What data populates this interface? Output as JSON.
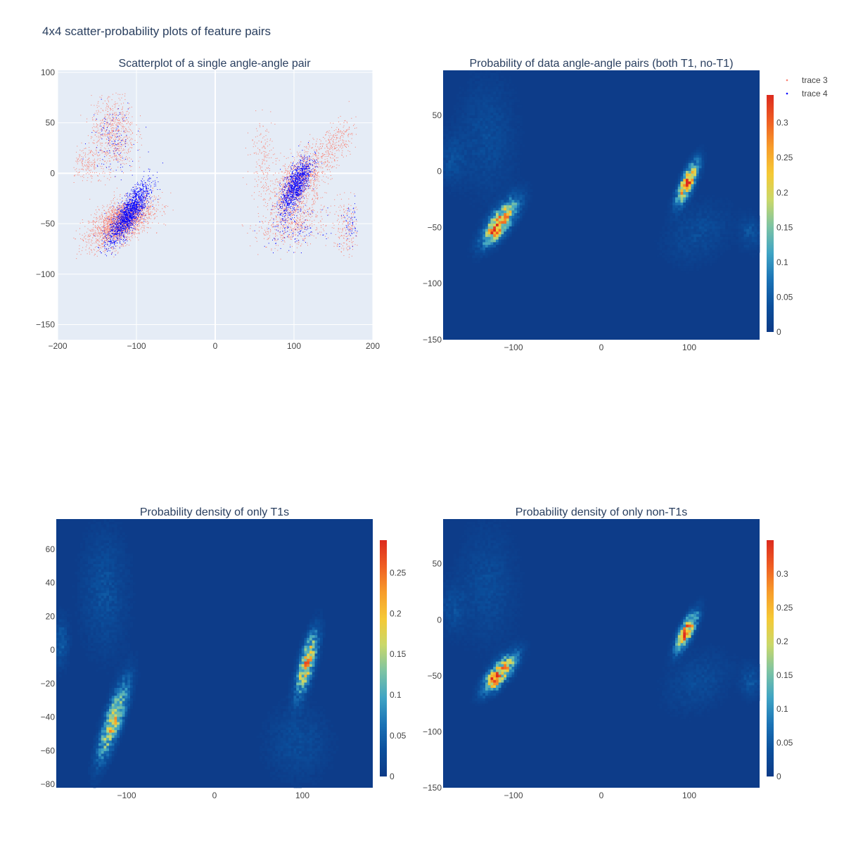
{
  "figure_title": "4x4 scatter-probability plots of feature pairs",
  "colors": {
    "trace3": "#fa8072",
    "trace4": "#0000ff",
    "scatter_bg": "#e5ecf6",
    "grid": "#ffffff",
    "colorscale": [
      "#0d3a87",
      "#0b4f9c",
      "#1b73b6",
      "#3fa4c4",
      "#7cc3a4",
      "#c9d86a",
      "#f5c935",
      "#f79d2a",
      "#ef5e23",
      "#dc2a1e"
    ]
  },
  "legend": {
    "items": [
      "trace 3",
      "trace 4"
    ]
  },
  "chart_data": [
    {
      "name": "scatter",
      "type": "scatter",
      "title": "Scatterplot of a single angle-angle pair",
      "xlim": [
        -200,
        200
      ],
      "ylim": [
        -165,
        102
      ],
      "xticks": [
        -200,
        -100,
        0,
        100,
        200
      ],
      "xtick_labels": [
        "−200",
        "−100",
        "0",
        "100",
        "200"
      ],
      "yticks": [
        100,
        50,
        0,
        -50,
        -100,
        -150
      ],
      "ytick_labels": [
        "100",
        "50",
        "0",
        "−50",
        "−100",
        "−150"
      ],
      "series": [
        {
          "name": "trace 3",
          "color": "#fa8072",
          "clusters": [
            {
              "cx": -120,
              "cy": -48,
              "sx": 20,
              "sy": 12,
              "rho": 0.55,
              "n": 2200
            },
            {
              "cx": -130,
              "cy": 40,
              "sx": 14,
              "sy": 20,
              "rho": 0,
              "n": 700
            },
            {
              "cx": -165,
              "cy": 10,
              "sx": 10,
              "sy": 8,
              "rho": 0,
              "n": 160
            },
            {
              "cx": 105,
              "cy": -10,
              "sx": 18,
              "sy": 18,
              "rho": 0.6,
              "n": 1300
            },
            {
              "cx": 100,
              "cy": -50,
              "sx": 22,
              "sy": 12,
              "rho": 0.3,
              "n": 450
            },
            {
              "cx": 155,
              "cy": 30,
              "sx": 12,
              "sy": 12,
              "rho": 0.5,
              "n": 250
            },
            {
              "cx": 168,
              "cy": -55,
              "sx": 9,
              "sy": 14,
              "rho": 0,
              "n": 200
            },
            {
              "cx": 60,
              "cy": 15,
              "sx": 8,
              "sy": 20,
              "rho": 0,
              "n": 180
            }
          ]
        },
        {
          "name": "trace 4",
          "color": "#0000ff",
          "clusters": [
            {
              "cx": -110,
              "cy": -40,
              "sx": 13,
              "sy": 15,
              "rho": 0.8,
              "n": 1600
            },
            {
              "cx": 102,
              "cy": -12,
              "sx": 10,
              "sy": 14,
              "rho": 0.7,
              "n": 1100
            },
            {
              "cx": -130,
              "cy": 35,
              "sx": 14,
              "sy": 18,
              "rho": 0,
              "n": 120
            },
            {
              "cx": 100,
              "cy": -55,
              "sx": 18,
              "sy": 10,
              "rho": 0,
              "n": 120
            },
            {
              "cx": 172,
              "cy": -50,
              "sx": 6,
              "sy": 10,
              "rho": 0,
              "n": 60
            }
          ]
        }
      ]
    },
    {
      "name": "both",
      "type": "heatmap",
      "title": "Probability of data angle-angle pairs (both T1, no-T1)",
      "xlim": [
        -180,
        180
      ],
      "ylim": [
        -150,
        90
      ],
      "xticks": [
        -100,
        0,
        100
      ],
      "xtick_labels": [
        "−100",
        "0",
        "100"
      ],
      "yticks": [
        50,
        0,
        -50,
        -100,
        -150
      ],
      "ytick_labels": [
        "50",
        "0",
        "−50",
        "−100",
        "−150"
      ],
      "zmax": 0.34,
      "colorbar_ticks": [
        0,
        0.05,
        0.1,
        0.15,
        0.2,
        0.25,
        0.3
      ],
      "colorbar_labels": [
        "0",
        "0.05",
        "0.1",
        "0.15",
        "0.2",
        "0.25",
        "0.3"
      ],
      "hotspots": [
        {
          "cx": -115,
          "cy": -45,
          "sx": 13,
          "sy": 13,
          "rho": 0.75,
          "amp": 0.26
        },
        {
          "cx": -122,
          "cy": -55,
          "sx": 4,
          "sy": 4,
          "rho": 0,
          "amp": 0.1
        },
        {
          "cx": 98,
          "cy": -10,
          "sx": 8,
          "sy": 12,
          "rho": 0.75,
          "amp": 0.28
        },
        {
          "cx": 96,
          "cy": -12,
          "sx": 3,
          "sy": 3,
          "rho": 0,
          "amp": 0.06
        },
        {
          "cx": -130,
          "cy": 30,
          "sx": 22,
          "sy": 35,
          "rho": 0,
          "amp": 0.03
        },
        {
          "cx": 110,
          "cy": -55,
          "sx": 25,
          "sy": 18,
          "rho": 0.3,
          "amp": 0.03
        },
        {
          "cx": 170,
          "cy": -55,
          "sx": 8,
          "sy": 10,
          "rho": 0,
          "amp": 0.04
        },
        {
          "cx": -170,
          "cy": 10,
          "sx": 10,
          "sy": 15,
          "rho": 0,
          "amp": 0.03
        }
      ]
    },
    {
      "name": "t1",
      "type": "heatmap",
      "title": "Probability density of only T1s",
      "xlim": [
        -180,
        180
      ],
      "ylim": [
        -82,
        78
      ],
      "xticks": [
        -100,
        0,
        100
      ],
      "xtick_labels": [
        "−100",
        "0",
        "100"
      ],
      "yticks": [
        60,
        40,
        20,
        0,
        -20,
        -40,
        -60,
        -80
      ],
      "ytick_labels": [
        "60",
        "40",
        "20",
        "0",
        "−20",
        "−40",
        "−60",
        "−80"
      ],
      "zmax": 0.29,
      "colorbar_ticks": [
        0,
        0.05,
        0.1,
        0.15,
        0.2,
        0.25
      ],
      "colorbar_labels": [
        "0",
        "0.05",
        "0.1",
        "0.15",
        "0.2",
        "0.25"
      ],
      "hotspots": [
        {
          "cx": -115,
          "cy": -42,
          "sx": 11,
          "sy": 15,
          "rho": 0.8,
          "amp": 0.18
        },
        {
          "cx": 105,
          "cy": -8,
          "sx": 8,
          "sy": 12,
          "rho": 0.7,
          "amp": 0.2
        },
        {
          "cx": -125,
          "cy": 35,
          "sx": 18,
          "sy": 25,
          "rho": 0,
          "amp": 0.03
        },
        {
          "cx": 95,
          "cy": -55,
          "sx": 25,
          "sy": 15,
          "rho": 0,
          "amp": 0.025
        },
        {
          "cx": -175,
          "cy": 5,
          "sx": 6,
          "sy": 10,
          "rho": 0,
          "amp": 0.04
        }
      ]
    },
    {
      "name": "nont1",
      "type": "heatmap",
      "title": "Probability density of only non-T1s",
      "xlim": [
        -180,
        180
      ],
      "ylim": [
        -150,
        90
      ],
      "xticks": [
        -100,
        0,
        100
      ],
      "xtick_labels": [
        "−100",
        "0",
        "100"
      ],
      "yticks": [
        50,
        0,
        -50,
        -100,
        -150
      ],
      "ytick_labels": [
        "50",
        "0",
        "−50",
        "−100",
        "−150"
      ],
      "zmax": 0.35,
      "colorbar_ticks": [
        0,
        0.05,
        0.1,
        0.15,
        0.2,
        0.25,
        0.3
      ],
      "colorbar_labels": [
        "0",
        "0.05",
        "0.1",
        "0.15",
        "0.2",
        "0.25",
        "0.3"
      ],
      "hotspots": [
        {
          "cx": -115,
          "cy": -47,
          "sx": 12,
          "sy": 11,
          "rho": 0.75,
          "amp": 0.27
        },
        {
          "cx": -122,
          "cy": -55,
          "sx": 4,
          "sy": 4,
          "rho": 0,
          "amp": 0.1
        },
        {
          "cx": 97,
          "cy": -10,
          "sx": 8,
          "sy": 11,
          "rho": 0.75,
          "amp": 0.28
        },
        {
          "cx": 96,
          "cy": -12,
          "sx": 3,
          "sy": 3,
          "rho": 0,
          "amp": 0.06
        },
        {
          "cx": -130,
          "cy": 30,
          "sx": 22,
          "sy": 35,
          "rho": 0,
          "amp": 0.03
        },
        {
          "cx": 110,
          "cy": -55,
          "sx": 25,
          "sy": 18,
          "rho": 0.3,
          "amp": 0.03
        },
        {
          "cx": 170,
          "cy": -55,
          "sx": 8,
          "sy": 10,
          "rho": 0,
          "amp": 0.04
        },
        {
          "cx": -170,
          "cy": 10,
          "sx": 10,
          "sy": 15,
          "rho": 0,
          "amp": 0.03
        }
      ]
    }
  ]
}
